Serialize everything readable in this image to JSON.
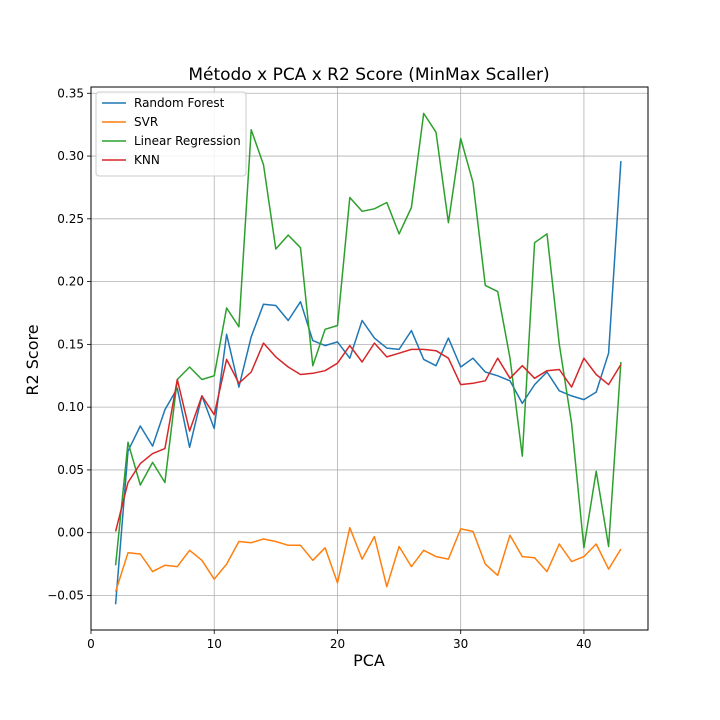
{
  "chart_data": {
    "type": "line",
    "title": "Método x PCA x R2 Score (MinMax Scaller)",
    "xlabel": "PCA",
    "ylabel": "R2 Score",
    "xlim": [
      0,
      45.2
    ],
    "ylim": [
      -0.0775,
      0.355
    ],
    "xticks": [
      0,
      10,
      20,
      30,
      40
    ],
    "yticks": [
      -0.05,
      0.0,
      0.05,
      0.1,
      0.15,
      0.2,
      0.25,
      0.3,
      0.35
    ],
    "ytick_labels": [
      "−0.05",
      "0.00",
      "0.05",
      "0.10",
      "0.15",
      "0.20",
      "0.25",
      "0.30",
      "0.35"
    ],
    "grid": true,
    "legend_position": "top-left",
    "x": [
      2,
      3,
      4,
      5,
      6,
      7,
      8,
      9,
      10,
      11,
      12,
      13,
      14,
      15,
      16,
      17,
      18,
      19,
      20,
      21,
      22,
      23,
      24,
      25,
      26,
      27,
      28,
      29,
      30,
      31,
      32,
      33,
      34,
      35,
      36,
      37,
      38,
      39,
      40,
      41,
      42,
      43
    ],
    "series": [
      {
        "name": "Random Forest",
        "color": "#1f77b4",
        "values": [
          -0.057,
          0.065,
          0.085,
          0.069,
          0.098,
          0.115,
          0.068,
          0.109,
          0.083,
          0.158,
          0.116,
          0.156,
          0.182,
          0.181,
          0.169,
          0.184,
          0.153,
          0.149,
          0.152,
          0.139,
          0.169,
          0.155,
          0.147,
          0.146,
          0.161,
          0.138,
          0.133,
          0.155,
          0.132,
          0.139,
          0.128,
          0.125,
          0.121,
          0.103,
          0.118,
          0.128,
          0.113,
          0.109,
          0.106,
          0.112,
          0.143,
          0.296
        ]
      },
      {
        "name": "SVR",
        "color": "#ff7f0e",
        "values": [
          -0.047,
          -0.016,
          -0.017,
          -0.031,
          -0.026,
          -0.027,
          -0.014,
          -0.022,
          -0.037,
          -0.025,
          -0.007,
          -0.008,
          -0.005,
          -0.007,
          -0.01,
          -0.01,
          -0.022,
          -0.012,
          -0.04,
          0.004,
          -0.021,
          -0.003,
          -0.043,
          -0.011,
          -0.027,
          -0.014,
          -0.019,
          -0.021,
          0.003,
          0.001,
          -0.025,
          -0.034,
          -0.002,
          -0.019,
          -0.02,
          -0.031,
          -0.009,
          -0.023,
          -0.019,
          -0.009,
          -0.029,
          -0.013
        ]
      },
      {
        "name": "Linear Regression",
        "color": "#2ca02c",
        "values": [
          -0.026,
          0.072,
          0.038,
          0.056,
          0.04,
          0.122,
          0.132,
          0.122,
          0.125,
          0.179,
          0.164,
          0.321,
          0.293,
          0.226,
          0.237,
          0.227,
          0.133,
          0.162,
          0.165,
          0.267,
          0.256,
          0.258,
          0.263,
          0.238,
          0.259,
          0.334,
          0.319,
          0.247,
          0.314,
          0.279,
          0.197,
          0.192,
          0.139,
          0.061,
          0.231,
          0.238,
          0.15,
          0.087,
          -0.012,
          0.049,
          -0.011,
          0.136
        ]
      },
      {
        "name": "KNN",
        "color": "#d62728",
        "values": [
          0.001,
          0.04,
          0.055,
          0.063,
          0.067,
          0.122,
          0.081,
          0.109,
          0.094,
          0.138,
          0.119,
          0.128,
          0.151,
          0.14,
          0.132,
          0.126,
          0.127,
          0.129,
          0.135,
          0.149,
          0.136,
          0.151,
          0.14,
          0.143,
          0.146,
          0.146,
          0.145,
          0.139,
          0.118,
          0.119,
          0.121,
          0.139,
          0.123,
          0.133,
          0.123,
          0.129,
          0.13,
          0.116,
          0.139,
          0.126,
          0.118,
          0.134
        ]
      }
    ]
  }
}
